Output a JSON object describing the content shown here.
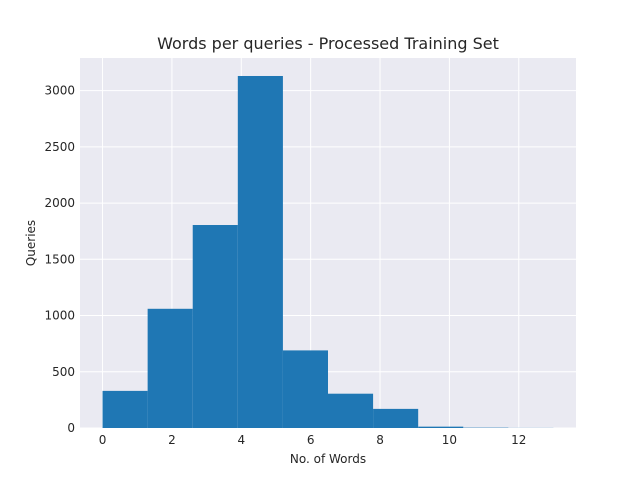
{
  "chart_data": {
    "type": "bar",
    "title": "Words per queries - Processed Training Set",
    "xlabel": "No. of Words",
    "ylabel": "Queries",
    "bin_edges": [
      0,
      1.3,
      2.6,
      3.9,
      5.2,
      6.5,
      7.8,
      9.1,
      10.4,
      11.7,
      13.0
    ],
    "values": [
      330,
      1060,
      1805,
      3130,
      690,
      305,
      170,
      12,
      3,
      1
    ],
    "xlim": [
      -0.65,
      13.65
    ],
    "ylim": [
      0,
      3290
    ],
    "xticks": [
      0,
      2,
      4,
      6,
      8,
      10,
      12
    ],
    "yticks": [
      0,
      500,
      1000,
      1500,
      2000,
      2500,
      3000
    ],
    "grid": true,
    "colors": {
      "bar": "#1f77b4",
      "background": "#eaeaf2",
      "grid": "#ffffff"
    }
  }
}
